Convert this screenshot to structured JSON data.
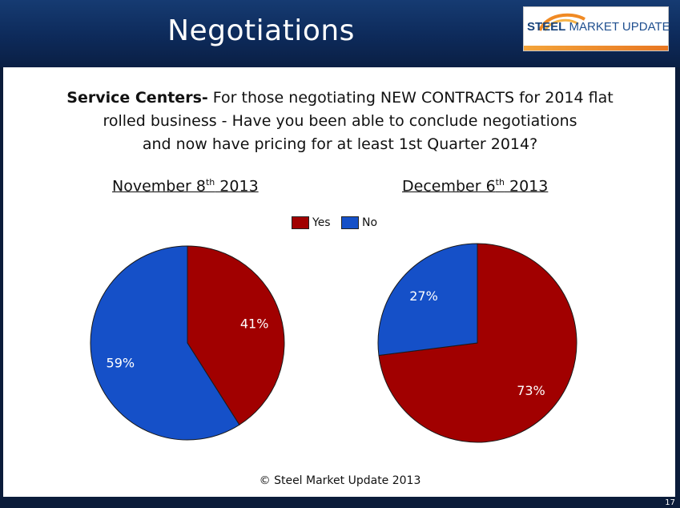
{
  "header": {
    "title": "Negotiations",
    "logo": {
      "text_bold": "STEEL",
      "text_regular": "MARKET UPDATE"
    }
  },
  "question": {
    "lead": "Service Centers-",
    "line1_rest": " For those negotiating NEW CONTRACTS for 2014 flat",
    "line2": "rolled business - Have you been able to conclude negotiations",
    "line3": "and now have pricing for at least 1st Quarter 2014?"
  },
  "legend": {
    "yes": "Yes",
    "no": "No"
  },
  "colors": {
    "yes": "#a10000",
    "no": "#1550c8"
  },
  "chart_data": [
    {
      "type": "pie",
      "title": {
        "main": "November 8",
        "sup": "th",
        "year": " 2013"
      },
      "categories": [
        "Yes",
        "No"
      ],
      "values": [
        41,
        59
      ],
      "labels": [
        "41%",
        "59%"
      ]
    },
    {
      "type": "pie",
      "title": {
        "main": "December 6",
        "sup": "th",
        "year": " 2013"
      },
      "categories": [
        "Yes",
        "No"
      ],
      "values": [
        73,
        27
      ],
      "labels": [
        "73%",
        "27%"
      ]
    }
  ],
  "footer": {
    "copyright": "© Steel Market Update 2013",
    "page": "17"
  }
}
